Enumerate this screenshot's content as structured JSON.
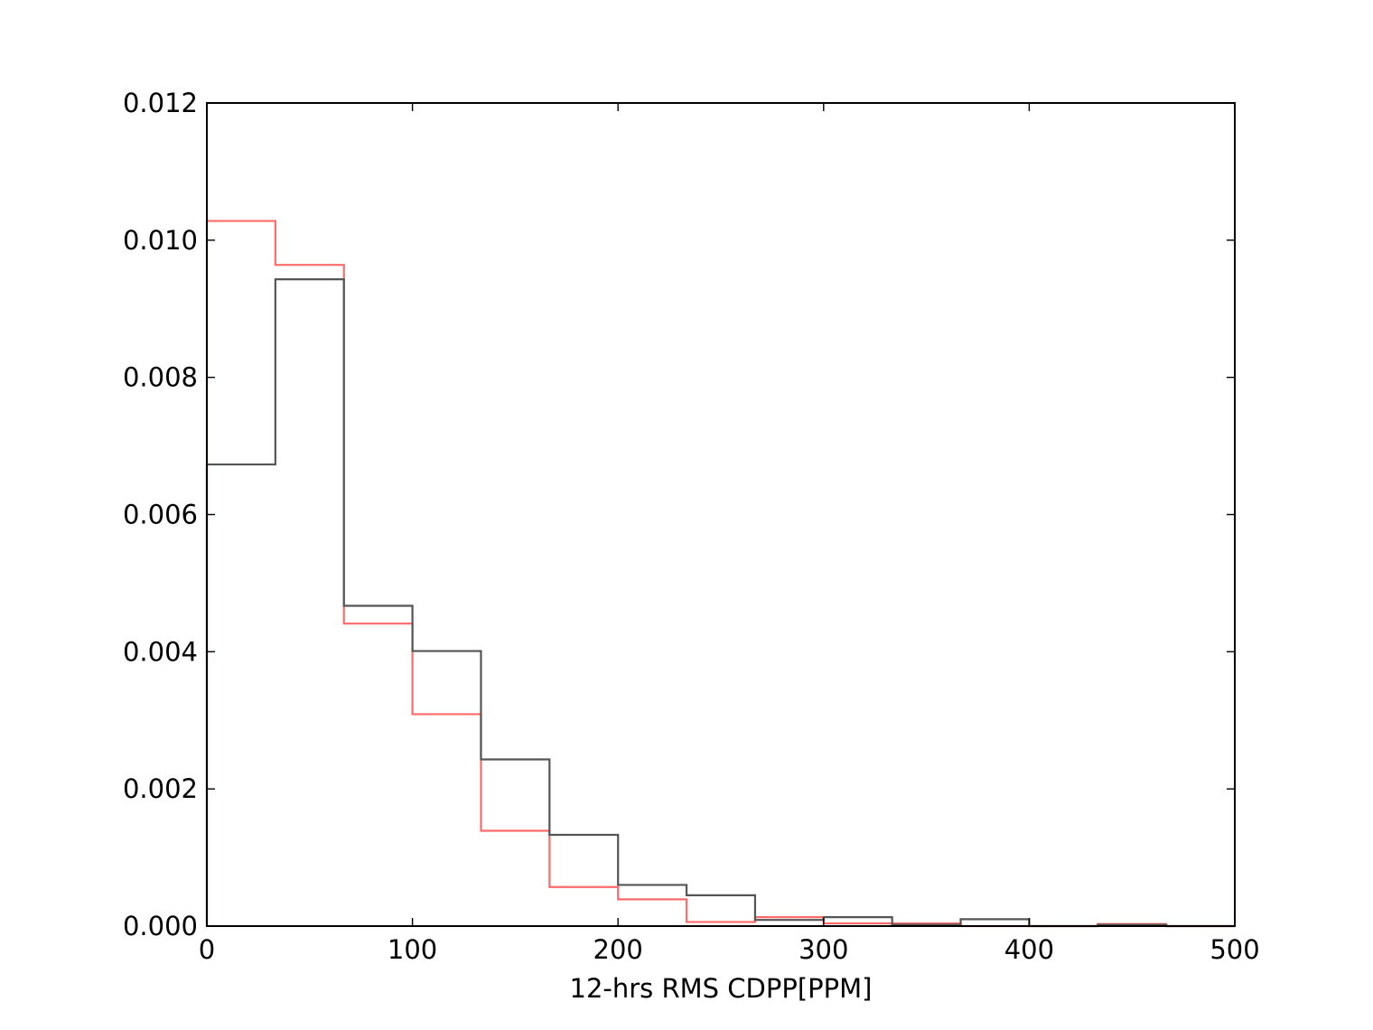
{
  "chart_data": {
    "type": "histogram",
    "title": "",
    "xlabel": "12-hrs RMS CDPP[PPM]",
    "ylabel": "",
    "xlim": [
      0,
      500
    ],
    "ylim": [
      0,
      0.012
    ],
    "grid": false,
    "legend": "none",
    "x_ticks": [
      0,
      100,
      200,
      300,
      400,
      500
    ],
    "x_tick_labels": [
      "0",
      "100",
      "200",
      "300",
      "400",
      "500"
    ],
    "y_ticks": [
      0,
      0.002,
      0.004,
      0.006,
      0.008,
      0.01,
      0.012
    ],
    "y_tick_labels": [
      "0.000",
      "0.002",
      "0.004",
      "0.006",
      "0.008",
      "0.010",
      "0.012"
    ],
    "bin_edges": [
      0,
      33.333,
      66.667,
      100,
      133.333,
      166.667,
      200,
      233.333,
      266.667,
      300,
      333.333,
      366.667,
      400,
      433.333,
      466.667,
      500
    ],
    "series": [
      {
        "color": "#ff6a6a",
        "values": [
          0.01028,
          0.00964,
          0.00441,
          0.00309,
          0.00139,
          0.00057,
          0.00039,
          6e-05,
          0.00013,
          4e-05,
          4e-05,
          0.0,
          0.0,
          3e-05,
          0.0
        ]
      },
      {
        "color": "#555555",
        "values": [
          0.00673,
          0.00943,
          0.00467,
          0.00401,
          0.00243,
          0.00133,
          0.0006,
          0.00045,
          9e-05,
          0.00013,
          2e-05,
          0.0001,
          0.0,
          2e-05,
          0.0
        ]
      }
    ]
  }
}
